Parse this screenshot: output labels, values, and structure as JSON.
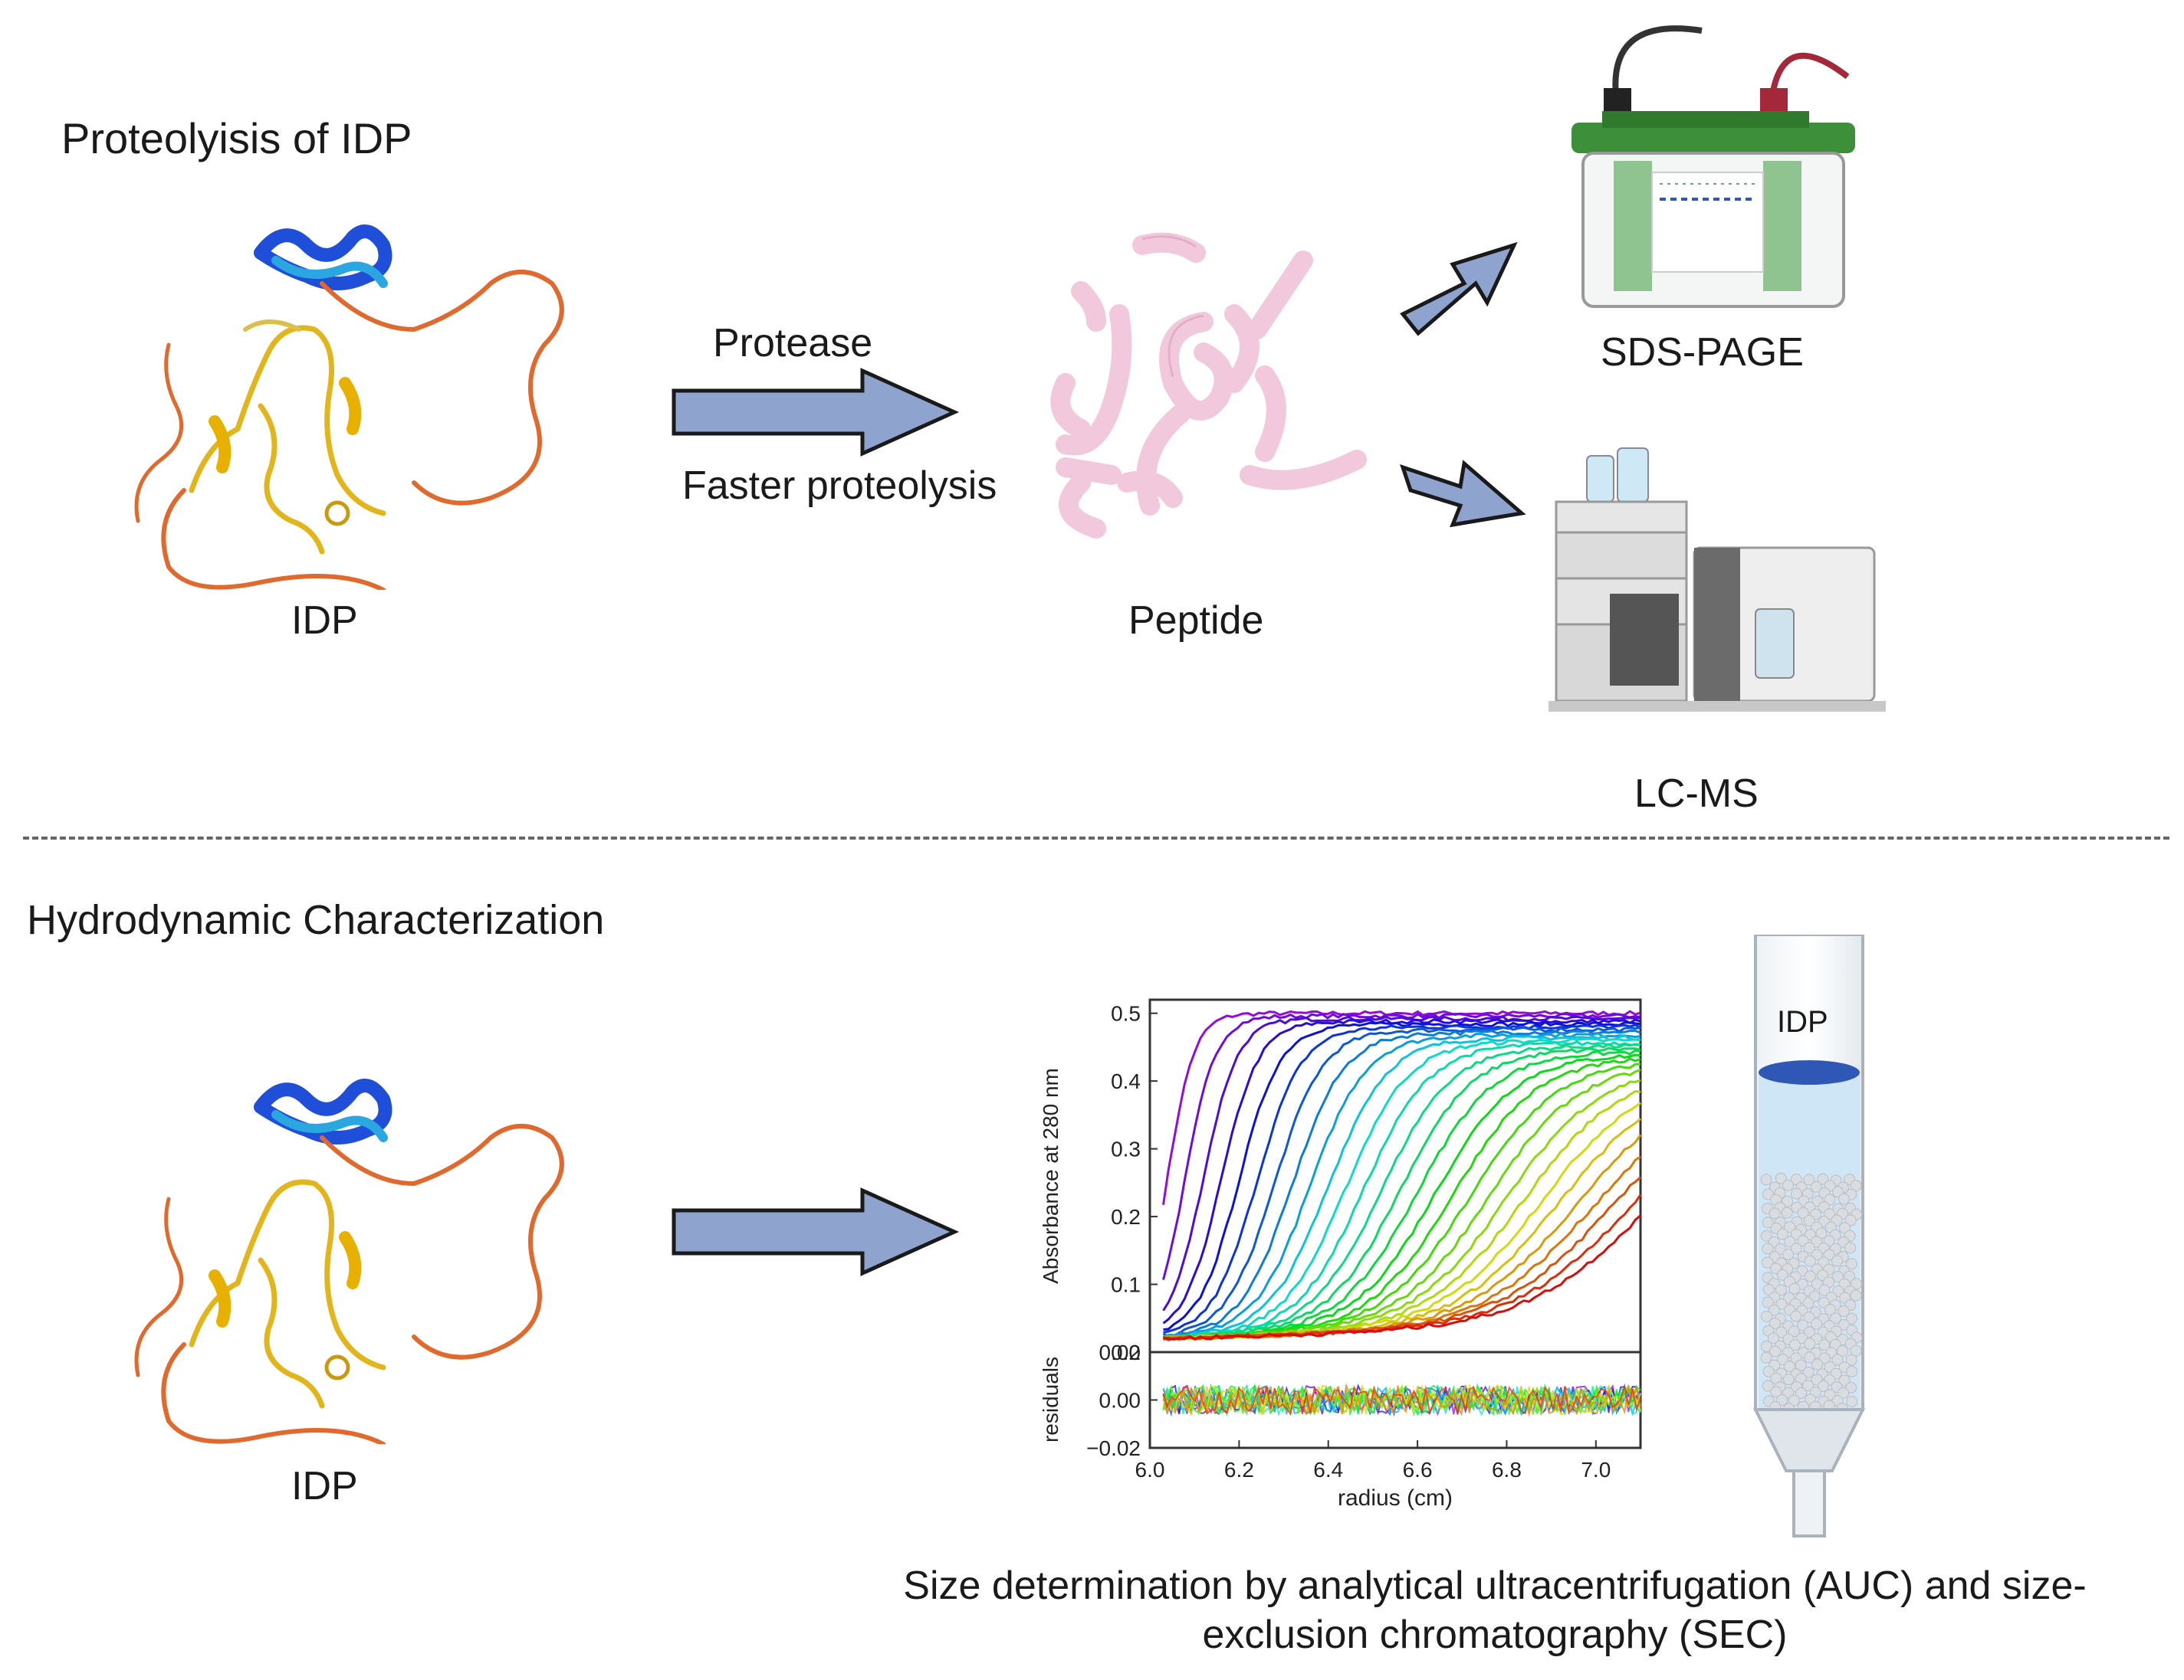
{
  "section1": {
    "title": "Proteolyisis of IDP",
    "idp_label": "IDP",
    "arrow_top_label": "Protease",
    "arrow_bottom_label": "Faster proteolysis",
    "peptide_label": "Peptide",
    "sds_label": "SDS-PAGE",
    "lcms_label": "LC-MS"
  },
  "section2": {
    "title": "Hydrodynamic Characterization",
    "idp_label": "IDP",
    "column_label": "IDP",
    "caption_line1": "Size determination by analytical ultracentrifugation  (AUC) and size-",
    "caption_line2": "exclusion chromatography (SEC)"
  },
  "colors": {
    "arrow_fill": "#8fa3cf",
    "arrow_stroke": "#1a1a1a",
    "peptide": "#f2c9dc",
    "gel_green": "#3d8f3a",
    "column_blue": "#2f57b5"
  },
  "chart_data": {
    "type": "line",
    "title": "",
    "xlabel": "radius (cm)",
    "ylabel": "Absorbance at 280 nm",
    "residual_ylabel": "residuals",
    "xlim": [
      6.0,
      7.1
    ],
    "ylim": [
      0.0,
      0.52
    ],
    "residual_ylim": [
      -0.02,
      0.02
    ],
    "x_ticks": [
      "6.0",
      "6.2",
      "6.4",
      "6.6",
      "6.8",
      "7.0"
    ],
    "y_ticks": [
      "0.0",
      "0.1",
      "0.2",
      "0.3",
      "0.4",
      "0.5"
    ],
    "residual_ticks": [
      "0.02",
      "0.00",
      "−0.02"
    ],
    "series_count": 28,
    "plateau": 0.5,
    "baseline": 0.02,
    "boundary_start": 6.04,
    "boundary_end": 7.12
  }
}
